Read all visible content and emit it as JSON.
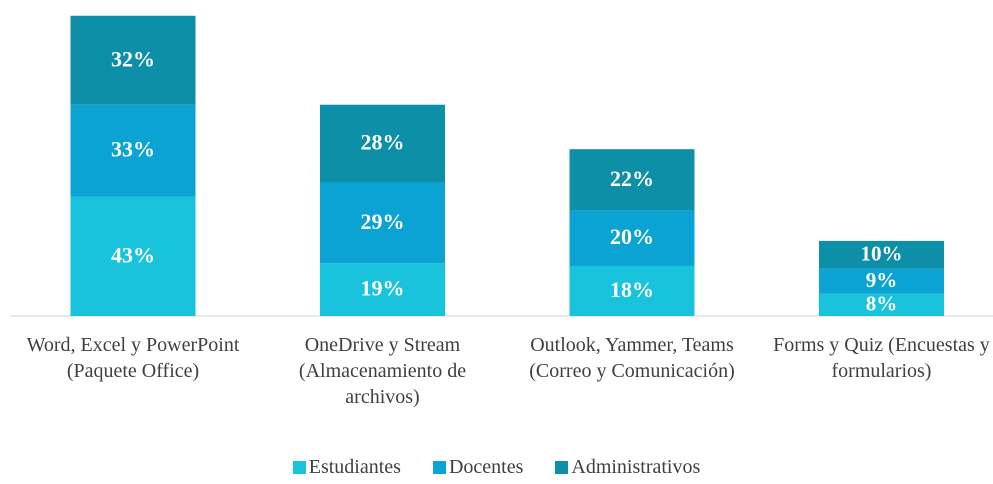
{
  "chart_data": {
    "type": "stacked_bar",
    "categories": [
      "Word, Excel y PowerPoint (Paquete Office)",
      "OneDrive y Stream (Almacenamiento de archivos)",
      "Outlook, Yammer, Teams (Correo y Comunicación)",
      "Forms y Quiz (Encuestas y formularios)"
    ],
    "series": [
      {
        "name": "Estudiantes",
        "color": "#19c3dc",
        "values": [
          43,
          19,
          18,
          8
        ],
        "value_labels": [
          "43%",
          "19%",
          "18%",
          "8%"
        ]
      },
      {
        "name": "Docentes",
        "color": "#0ba3d3",
        "values": [
          33,
          29,
          20,
          9
        ],
        "value_labels": [
          "33%",
          "29%",
          "20%",
          "9%"
        ]
      },
      {
        "name": "Administrativos",
        "color": "#0e8fa8",
        "values": [
          32,
          28,
          22,
          10
        ],
        "value_labels": [
          "32%",
          "28%",
          "22%",
          "10%"
        ]
      }
    ],
    "legend": "bottom"
  }
}
